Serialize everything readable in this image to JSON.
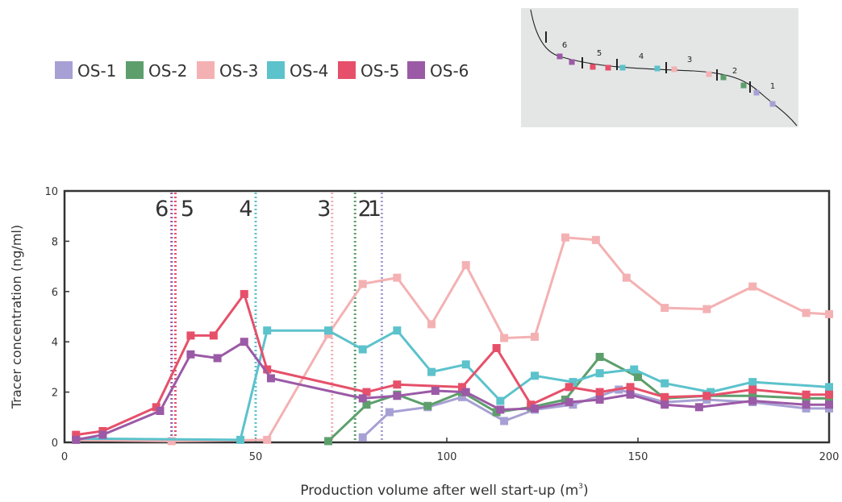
{
  "chart_data": {
    "type": "line",
    "xlabel": "Production volume after well start-up (m",
    "xlabel_sup": "3",
    "xlabel_close": ")",
    "ylabel": "Tracer concentration (ng/ml)",
    "xlim": [
      0,
      200
    ],
    "ylim": [
      0,
      10
    ],
    "xticks": [
      0,
      50,
      100,
      150,
      200
    ],
    "yticks": [
      0,
      2,
      4,
      6,
      8,
      10
    ],
    "legend_position": "top-left",
    "series": [
      {
        "name": "OS-1",
        "color": "#a7a0d4",
        "x": [
          78,
          85,
          95,
          104,
          115,
          123,
          133,
          145,
          157,
          168,
          180,
          194,
          200
        ],
        "y": [
          0.2,
          1.2,
          1.4,
          1.8,
          0.85,
          1.3,
          1.5,
          2.1,
          1.6,
          1.7,
          1.6,
          1.35,
          1.35
        ]
      },
      {
        "name": "OS-2",
        "color": "#5d9f6c",
        "x": [
          69,
          79,
          87,
          95,
          104,
          113,
          122,
          131,
          140,
          150,
          157,
          168,
          180,
          194,
          200
        ],
        "y": [
          0.05,
          1.5,
          1.9,
          1.45,
          2.0,
          1.2,
          1.4,
          1.7,
          3.4,
          2.6,
          1.75,
          1.85,
          1.85,
          1.75,
          1.75
        ]
      },
      {
        "name": "OS-3",
        "color": "#f4b1b3",
        "x": [
          3,
          28,
          53,
          69,
          78,
          87,
          96,
          105,
          115,
          123,
          131,
          139,
          147,
          157,
          168,
          180,
          194,
          200
        ],
        "y": [
          0.1,
          0.05,
          0.1,
          4.3,
          6.3,
          6.55,
          4.7,
          7.05,
          4.15,
          4.2,
          8.15,
          8.05,
          6.55,
          5.35,
          5.3,
          6.2,
          5.15,
          5.1
        ]
      },
      {
        "name": "OS-4",
        "color": "#5cc2cc",
        "x": [
          3,
          46,
          53,
          69,
          78,
          87,
          96,
          105,
          114,
          123,
          133,
          140,
          149,
          157,
          169,
          180,
          200
        ],
        "y": [
          0.15,
          0.1,
          4.45,
          4.45,
          3.7,
          4.45,
          2.8,
          3.1,
          1.65,
          2.65,
          2.4,
          2.75,
          2.9,
          2.35,
          2.0,
          2.4,
          2.2
        ]
      },
      {
        "name": "OS-5",
        "color": "#e6506a",
        "x": [
          3,
          10,
          24,
          33,
          39,
          47,
          53,
          79,
          87,
          104,
          113,
          122,
          132,
          140,
          148,
          157,
          168,
          180,
          194,
          200
        ],
        "y": [
          0.3,
          0.45,
          1.4,
          4.25,
          4.25,
          5.9,
          2.9,
          2.0,
          2.3,
          2.2,
          3.75,
          1.5,
          2.2,
          2.0,
          2.2,
          1.8,
          1.85,
          2.1,
          1.9,
          1.9
        ]
      },
      {
        "name": "OS-6",
        "color": "#9b5aa6",
        "x": [
          3,
          10,
          25,
          33,
          40,
          47,
          54,
          78,
          87,
          97,
          105,
          114,
          123,
          132,
          140,
          148,
          157,
          166,
          180,
          194,
          200
        ],
        "y": [
          0.1,
          0.3,
          1.25,
          3.5,
          3.35,
          4.0,
          2.55,
          1.75,
          1.85,
          2.05,
          2.0,
          1.3,
          1.35,
          1.6,
          1.7,
          1.9,
          1.5,
          1.4,
          1.65,
          1.5,
          1.5
        ]
      }
    ],
    "vlines": [
      {
        "label": "6",
        "x": 28,
        "color": "#9b5aa6"
      },
      {
        "label": "5",
        "x": 29,
        "color": "#e6506a"
      },
      {
        "label": "4",
        "x": 50,
        "color": "#5cc2cc"
      },
      {
        "label": "3",
        "x": 70,
        "color": "#f4b1b3"
      },
      {
        "label": "2",
        "x": 76,
        "color": "#5d9f6c"
      },
      {
        "label": "1",
        "x": 83,
        "color": "#a7a0d4"
      }
    ]
  },
  "inset": {
    "labels": [
      "6",
      "5",
      "4",
      "3",
      "2",
      "1"
    ],
    "marker_colors": [
      "#9b5aa6",
      "#9b5aa6",
      "#e6506a",
      "#e6506a",
      "#5cc2cc",
      "#5cc2cc",
      "#f4b1b3",
      "#f4b1b3",
      "#5d9f6c",
      "#5d9f6c",
      "#a7a0d4",
      "#a7a0d4"
    ]
  }
}
